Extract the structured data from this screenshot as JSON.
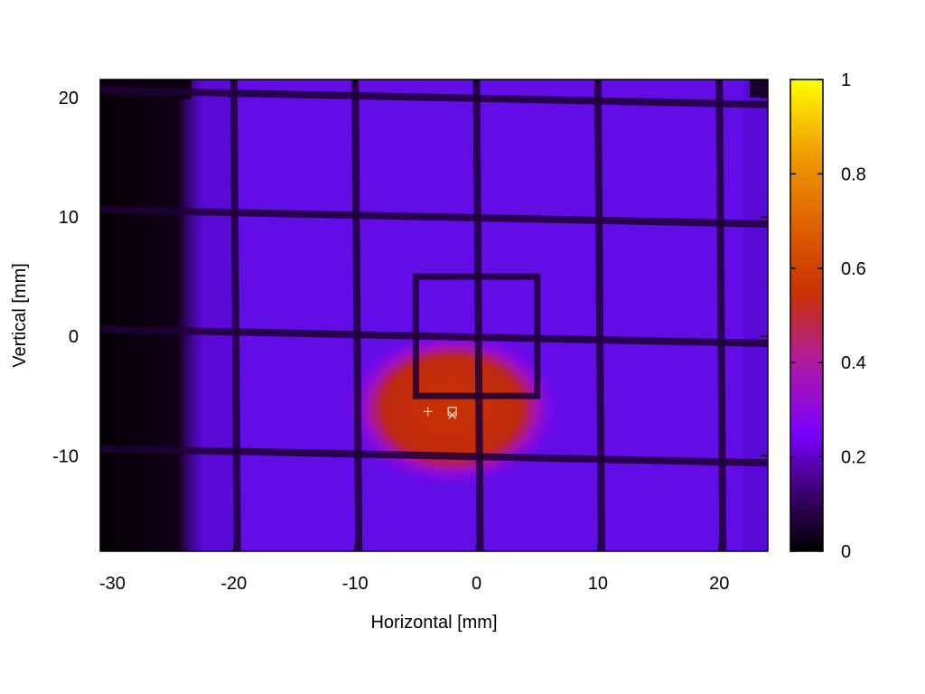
{
  "chart_data": {
    "type": "heatmap",
    "xlabel": "Horizontal [mm]",
    "ylabel": "Vertical [mm]",
    "xlim": [
      -31,
      24
    ],
    "ylim": [
      -18,
      21.5
    ],
    "xticks": [
      -30,
      -20,
      -10,
      0,
      10,
      20
    ],
    "yticks": [
      20,
      10,
      0,
      -10
    ],
    "colorbar": {
      "range": [
        0,
        1
      ],
      "ticks": [
        0,
        0.2,
        0.4,
        0.6,
        0.8,
        1
      ],
      "tick_labels": [
        "0",
        "0.2",
        "0.4",
        "0.6",
        "0.8",
        "1"
      ],
      "colormap": [
        "#000000",
        "#3a006a",
        "#7a00ff",
        "#c01080",
        "#c83200",
        "#e87800",
        "#ffcc00",
        "#ffff00"
      ]
    },
    "background_level": 0.2,
    "dark_edge_columns_x": [
      -31,
      -24
    ],
    "beam_spot": {
      "center_x": -2,
      "center_y": -6,
      "width_x": 12,
      "height_y": 8,
      "peak": 0.55
    },
    "grid_lines_x": [
      -20,
      -10,
      0,
      10,
      20
    ],
    "grid_lines_y": [
      20,
      10,
      0,
      -10
    ],
    "inner_frame": {
      "x0": -5,
      "x1": 5,
      "y0": -5,
      "y1": 5
    },
    "markers": [
      {
        "symbol": "+",
        "x": -4,
        "y": -6.3
      },
      {
        "symbol": "□",
        "x": -2,
        "y": -6.3
      },
      {
        "symbol": "×",
        "x": -2,
        "y": -6.6
      }
    ]
  }
}
